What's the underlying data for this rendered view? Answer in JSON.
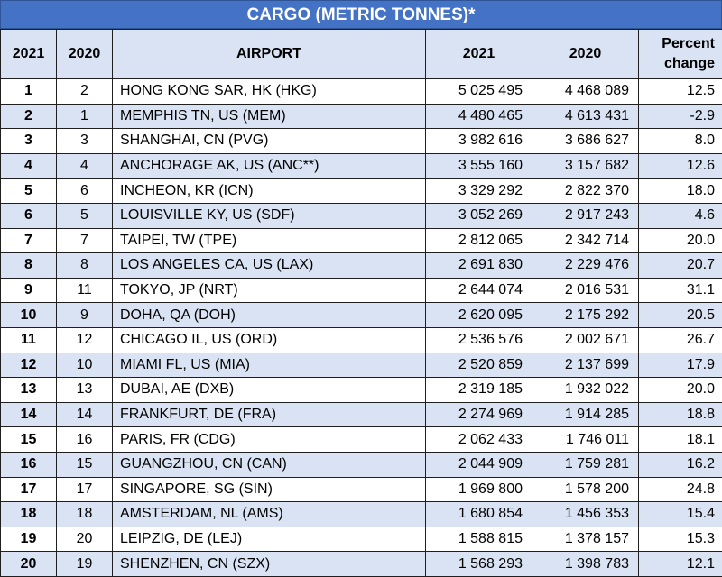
{
  "title": "CARGO (METRIC TONNES)*",
  "headers": {
    "rank2021": "2021",
    "rank2020": "2020",
    "airport": "AIRPORT",
    "cargo2021": "2021",
    "cargo2020": "2020",
    "pct": "Percent change"
  },
  "rows": [
    {
      "r21": "1",
      "r20": "2",
      "airport": "HONG KONG SAR, HK (HKG)",
      "c21": "5 025 495",
      "c20": "4 468 089",
      "pct": "12.5"
    },
    {
      "r21": "2",
      "r20": "1",
      "airport": "MEMPHIS TN, US (MEM)",
      "c21": "4 480 465",
      "c20": "4 613 431",
      "pct": "-2.9"
    },
    {
      "r21": "3",
      "r20": "3",
      "airport": "SHANGHAI, CN (PVG)",
      "c21": "3 982 616",
      "c20": "3 686 627",
      "pct": "8.0"
    },
    {
      "r21": "4",
      "r20": "4",
      "airport": "ANCHORAGE AK, US (ANC**)",
      "c21": "3 555 160",
      "c20": "3 157 682",
      "pct": "12.6"
    },
    {
      "r21": "5",
      "r20": "6",
      "airport": "INCHEON, KR (ICN)",
      "c21": "3 329 292",
      "c20": "2 822 370",
      "pct": "18.0"
    },
    {
      "r21": "6",
      "r20": "5",
      "airport": "LOUISVILLE KY, US (SDF)",
      "c21": "3 052 269",
      "c20": "2 917 243",
      "pct": "4.6"
    },
    {
      "r21": "7",
      "r20": "7",
      "airport": "TAIPEI, TW (TPE)",
      "c21": "2 812 065",
      "c20": "2 342 714",
      "pct": "20.0"
    },
    {
      "r21": "8",
      "r20": "8",
      "airport": "LOS ANGELES CA, US (LAX)",
      "c21": "2 691 830",
      "c20": "2 229 476",
      "pct": "20.7"
    },
    {
      "r21": "9",
      "r20": "11",
      "airport": "TOKYO, JP (NRT)",
      "c21": "2 644 074",
      "c20": "2 016 531",
      "pct": "31.1"
    },
    {
      "r21": "10",
      "r20": "9",
      "airport": "DOHA, QA (DOH)",
      "c21": "2 620 095",
      "c20": "2 175 292",
      "pct": "20.5"
    },
    {
      "r21": "11",
      "r20": "12",
      "airport": "CHICAGO IL, US (ORD)",
      "c21": "2 536 576",
      "c20": "2 002 671",
      "pct": "26.7"
    },
    {
      "r21": "12",
      "r20": "10",
      "airport": "MIAMI FL, US (MIA)",
      "c21": "2 520 859",
      "c20": "2 137 699",
      "pct": "17.9"
    },
    {
      "r21": "13",
      "r20": "13",
      "airport": "DUBAI, AE (DXB)",
      "c21": "2 319 185",
      "c20": "1 932 022",
      "pct": "20.0"
    },
    {
      "r21": "14",
      "r20": "14",
      "airport": "FRANKFURT, DE (FRA)",
      "c21": "2 274 969",
      "c20": "1 914 285",
      "pct": "18.8"
    },
    {
      "r21": "15",
      "r20": "16",
      "airport": "PARIS, FR (CDG)",
      "c21": "2 062 433",
      "c20": "1 746 011",
      "pct": "18.1"
    },
    {
      "r21": "16",
      "r20": "15",
      "airport": "GUANGZHOU, CN (CAN)",
      "c21": "2 044 909",
      "c20": "1 759 281",
      "pct": "16.2"
    },
    {
      "r21": "17",
      "r20": "17",
      "airport": "SINGAPORE, SG (SIN)",
      "c21": "1 969 800",
      "c20": "1 578 200",
      "pct": "24.8"
    },
    {
      "r21": "18",
      "r20": "18",
      "airport": "AMSTERDAM, NL (AMS)",
      "c21": "1 680 854",
      "c20": "1 456 353",
      "pct": "15.4"
    },
    {
      "r21": "19",
      "r20": "20",
      "airport": "LEIPZIG, DE (LEJ)",
      "c21": "1 588 815",
      "c20": "1 378 157",
      "pct": "15.3"
    },
    {
      "r21": "20",
      "r20": "19",
      "airport": "SHENZHEN, CN (SZX)",
      "c21": "1 568 293",
      "c20": "1 398 783",
      "pct": "12.1"
    }
  ],
  "colors": {
    "title_bg": "#4472c4",
    "band": "#dae3f3"
  }
}
